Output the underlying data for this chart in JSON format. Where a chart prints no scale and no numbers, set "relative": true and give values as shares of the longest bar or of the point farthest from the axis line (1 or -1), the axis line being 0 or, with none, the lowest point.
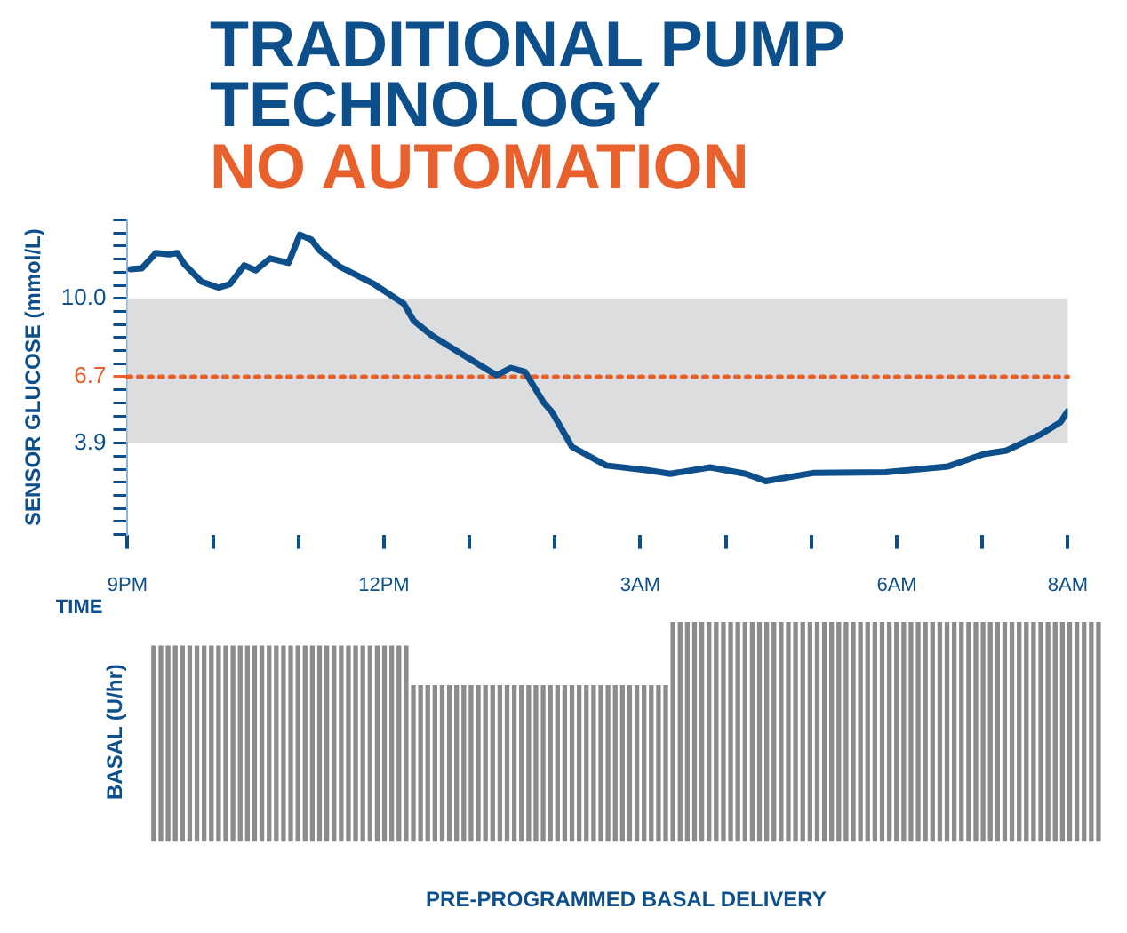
{
  "chart_data": [
    {
      "type": "line",
      "title": "TRADITIONAL PUMP TECHNOLOGY",
      "subtitle": "NO AUTOMATION",
      "xlabel": "TIME",
      "ylabel": "SENSOR GLUCOSE (mmol/L)",
      "x": [
        "--01-01T21:02",
        "--01-01T21:10",
        "--01-01T21:20",
        "--01-01T21:29",
        "--01-01T21:35",
        "--01-01T21:40",
        "--01-01T21:52",
        "--01-01T22:04",
        "--01-01T22:12",
        "--01-01T22:22",
        "--01-01T22:30",
        "--01-01T22:40",
        "--01-01T22:53",
        "--01-01T23:01",
        "--01-01T23:09",
        "--01-01T23:15",
        "--01-01T23:29",
        "--01-01T23:53",
        "--01-02T00:14",
        "--01-02T00:21",
        "--01-02T00:34",
        "--01-02T00:59",
        "--01-02T01:19",
        "--01-02T01:29",
        "--01-02T01:39",
        "--01-02T01:52",
        "--01-02T01:58",
        "--01-02T02:12",
        "--01-02T02:36",
        "--01-02T03:05",
        "--01-02T03:21",
        "--01-02T03:49",
        "--01-02T04:14",
        "--01-02T04:28",
        "--01-02T05:02",
        "--01-02T05:52",
        "--01-02T06:36",
        "--01-02T07:01",
        "--01-02T07:17",
        "--01-02T07:41",
        "--01-02T07:55",
        "--01-02T08:00"
      ],
      "series": [
        {
          "color": "#0d4f8b",
          "values": [
            11.23,
            11.26,
            11.91,
            11.85,
            11.91,
            11.43,
            10.7,
            10.45,
            10.6,
            11.39,
            11.18,
            11.68,
            11.49,
            12.68,
            12.47,
            12.01,
            11.33,
            10.6,
            9.77,
            9.05,
            8.42,
            7.49,
            6.76,
            7.07,
            6.91,
            5.62,
            5.21,
            3.75,
            2.96,
            2.76,
            2.61,
            2.88,
            2.61,
            2.3,
            2.65,
            2.67,
            2.92,
            3.44,
            3.59,
            4.27,
            4.79,
            5.25
          ]
        }
      ],
      "xlim": [
        "--01-01T21:00",
        "--01-02T08:00"
      ],
      "xticks": [
        {
          "value": "--01-01T21:00",
          "label": "9PM"
        },
        {
          "value": "--01-01T22:00",
          "label": null
        },
        {
          "value": "--01-01T23:00",
          "label": null
        },
        {
          "value": "--01-02T00:00",
          "label": "12PM"
        },
        {
          "value": "--01-02T01:00",
          "label": null
        },
        {
          "value": "--01-02T02:00",
          "label": null
        },
        {
          "value": "--01-02T03:00",
          "label": "3AM"
        },
        {
          "value": "--01-02T04:00",
          "label": null
        },
        {
          "value": "--01-02T05:00",
          "label": null
        },
        {
          "value": "--01-02T06:00",
          "label": "6AM"
        },
        {
          "value": "--01-02T07:00",
          "label": null
        },
        {
          "value": "--01-02T08:00",
          "label": "8AM"
        }
      ],
      "ylim": [
        0.05,
        13.3
      ],
      "yticks": [
        {
          "value": 0.05,
          "label": null
        },
        {
          "value": 0.6,
          "label": null
        },
        {
          "value": 1.15,
          "label": null
        },
        {
          "value": 1.7,
          "label": null
        },
        {
          "value": 2.25,
          "label": null
        },
        {
          "value": 2.8,
          "label": null
        },
        {
          "value": 3.35,
          "label": null
        },
        {
          "value": 3.9,
          "label": "3.9"
        },
        {
          "value": 4.46,
          "label": null
        },
        {
          "value": 5.02,
          "label": null
        },
        {
          "value": 5.58,
          "label": null
        },
        {
          "value": 6.14,
          "label": null
        },
        {
          "value": 6.7,
          "label": "6.7"
        },
        {
          "value": 7.25,
          "label": null
        },
        {
          "value": 7.8,
          "label": null
        },
        {
          "value": 8.35,
          "label": null
        },
        {
          "value": 8.9,
          "label": null
        },
        {
          "value": 9.45,
          "label": null
        },
        {
          "value": 10,
          "label": "10.0"
        },
        {
          "value": 10.55,
          "label": null
        },
        {
          "value": 11.1,
          "label": null
        },
        {
          "value": 11.65,
          "label": null
        },
        {
          "value": 12.2,
          "label": null
        },
        {
          "value": 12.75,
          "label": null
        },
        {
          "value": 13.3,
          "label": null
        }
      ],
      "bands": [
        {
          "axis": "y",
          "from": 3.9,
          "to": 10.0,
          "color": "#dcdddf"
        }
      ],
      "ref_lines": [
        {
          "axis": "y",
          "value": 6.7,
          "color": "#e8602c",
          "line_style": "dotted"
        }
      ]
    },
    {
      "type": "bar",
      "relative": true,
      "xlabel": "PRE-PROGRAMMED BASAL DELIVERY",
      "ylabel": "BASAL (U/hr)",
      "categories": [
        null,
        null,
        null,
        null,
        null,
        null,
        null,
        null,
        null,
        null,
        null,
        null,
        null,
        null,
        null,
        null,
        null,
        null,
        null,
        null,
        null,
        null,
        null,
        null,
        null,
        null,
        null,
        null,
        null,
        null,
        null,
        null,
        null,
        null,
        null,
        null,
        null,
        null,
        null,
        null,
        null,
        null,
        null,
        null,
        null,
        null,
        null,
        null,
        null,
        null,
        null,
        null,
        null,
        null,
        null,
        null,
        null,
        null,
        null,
        null,
        null,
        null,
        null,
        null,
        null,
        null,
        null,
        null,
        null,
        null,
        null,
        null,
        null,
        null,
        null,
        null,
        null,
        null,
        null,
        null,
        null,
        null,
        null,
        null,
        null,
        null,
        null,
        null,
        null,
        null,
        null,
        null,
        null,
        null,
        null,
        null,
        null,
        null,
        null,
        null,
        null,
        null,
        null,
        null,
        null,
        null,
        null,
        null,
        null,
        null,
        null,
        null,
        null,
        null,
        null,
        null,
        null,
        null,
        null,
        null,
        null,
        null,
        null,
        null,
        null,
        null,
        null,
        null,
        null,
        null,
        null,
        null
      ],
      "color": "#8c8c8c",
      "values": [
        0.89,
        0.89,
        0.89,
        0.89,
        0.89,
        0.89,
        0.89,
        0.89,
        0.89,
        0.89,
        0.89,
        0.89,
        0.89,
        0.89,
        0.89,
        0.89,
        0.89,
        0.89,
        0.89,
        0.89,
        0.89,
        0.89,
        0.89,
        0.89,
        0.89,
        0.89,
        0.89,
        0.89,
        0.89,
        0.89,
        0.89,
        0.89,
        0.89,
        0.89,
        0.89,
        0.89,
        0.71,
        0.71,
        0.71,
        0.71,
        0.71,
        0.71,
        0.71,
        0.71,
        0.71,
        0.71,
        0.71,
        0.71,
        0.71,
        0.71,
        0.71,
        0.71,
        0.71,
        0.71,
        0.71,
        0.71,
        0.71,
        0.71,
        0.71,
        0.71,
        0.71,
        0.71,
        0.71,
        0.71,
        0.71,
        0.71,
        0.71,
        0.71,
        0.71,
        0.71,
        0.71,
        0.71,
        1,
        1,
        1,
        1,
        1,
        1,
        1,
        1,
        1,
        1,
        1,
        1,
        1,
        1,
        1,
        1,
        1,
        1,
        1,
        1,
        1,
        1,
        1,
        1,
        1,
        1,
        1,
        1,
        1,
        1,
        1,
        1,
        1,
        1,
        1,
        1,
        1,
        1,
        1,
        1,
        1,
        1,
        1,
        1,
        1,
        1,
        1,
        1,
        1,
        1,
        1,
        1,
        1,
        1,
        1,
        1,
        1,
        1,
        1,
        1
      ]
    }
  ]
}
